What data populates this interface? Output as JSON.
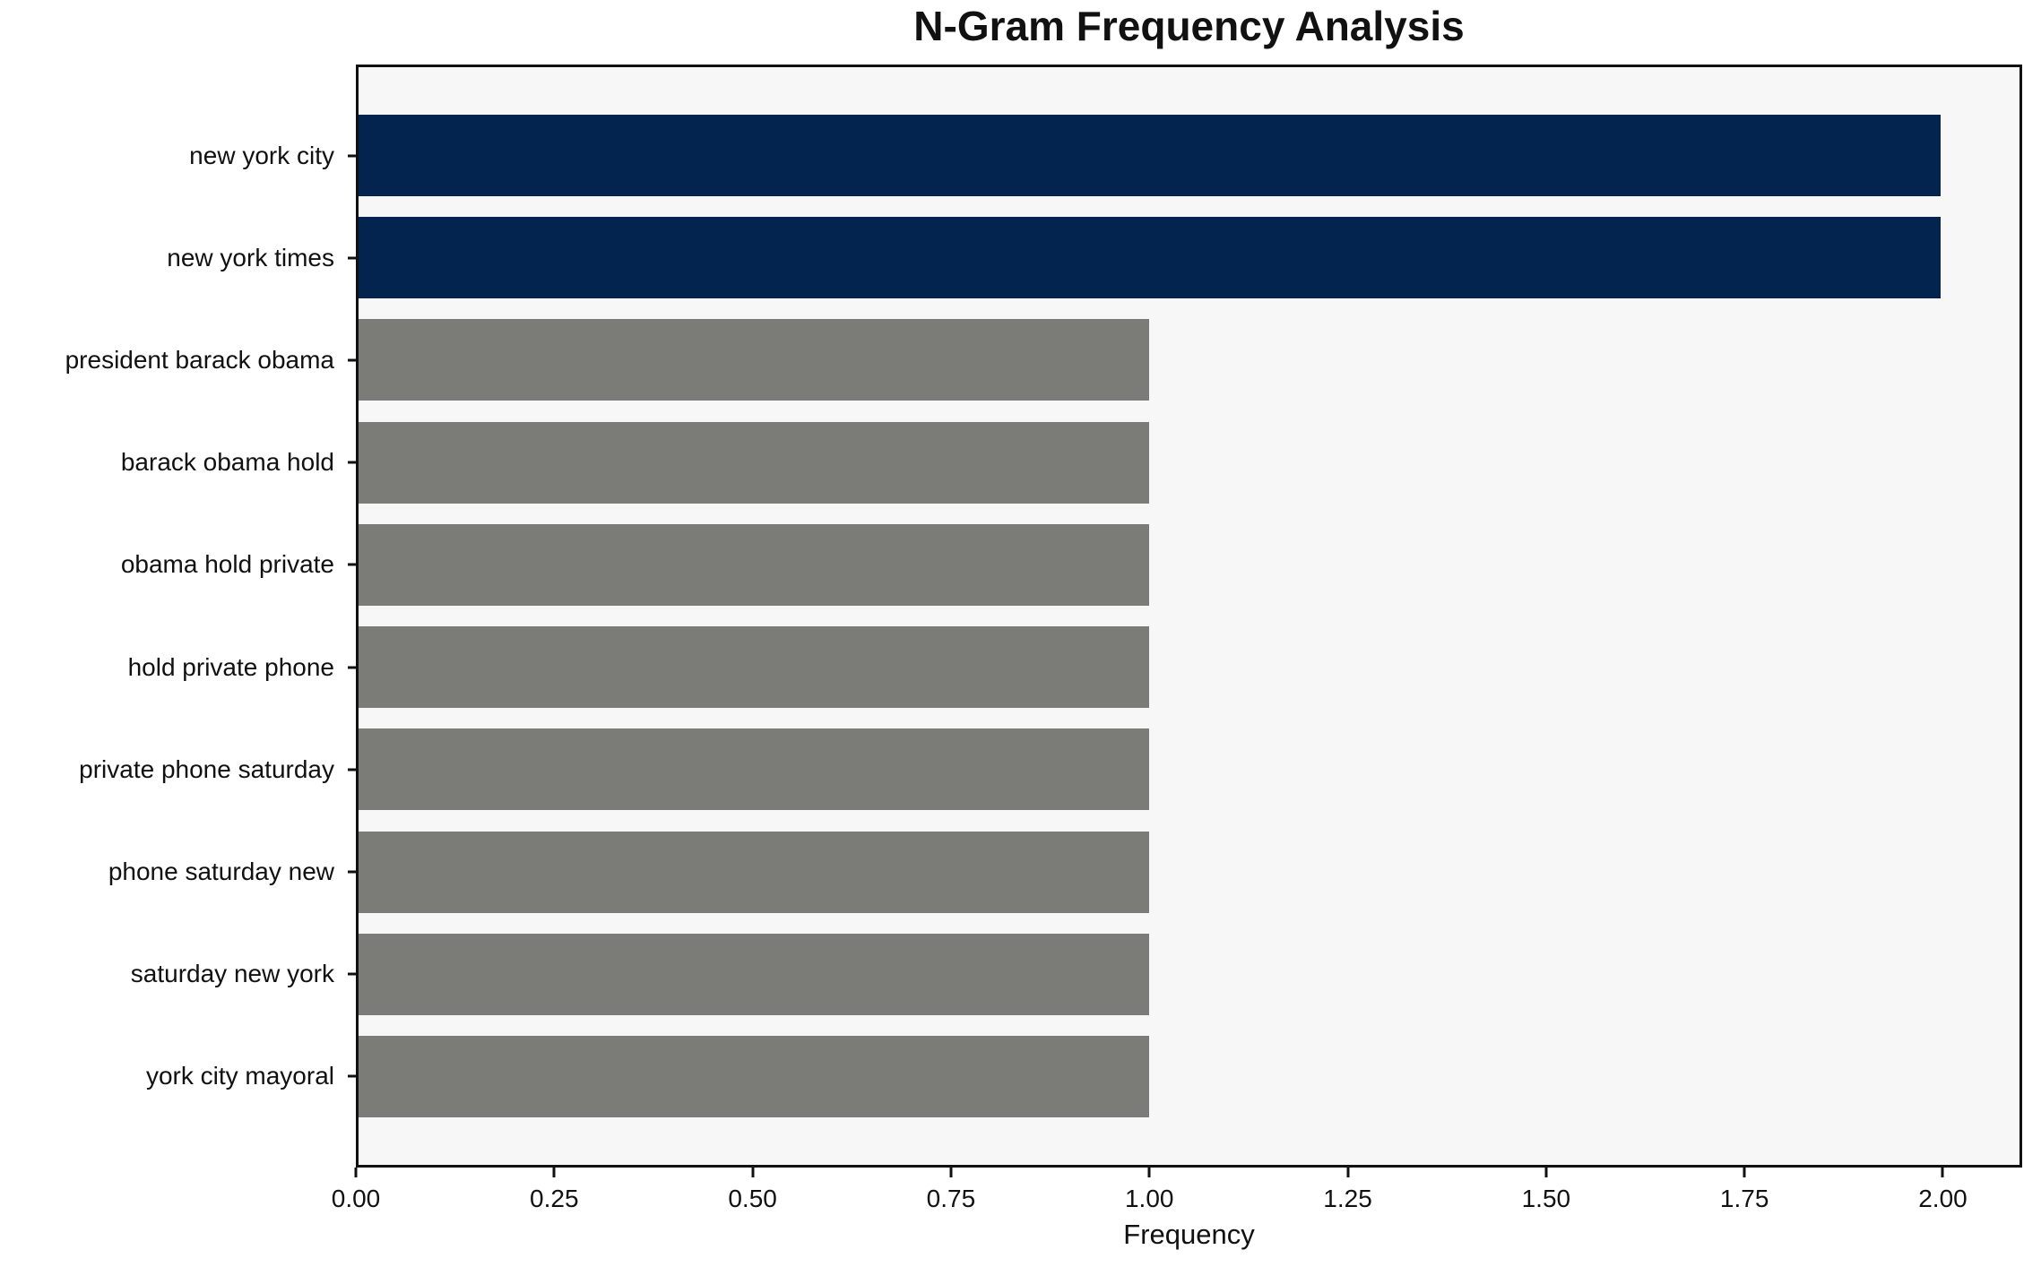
{
  "chart_data": {
    "type": "bar",
    "orientation": "horizontal",
    "title": "N-Gram Frequency Analysis",
    "xlabel": "Frequency",
    "ylabel": "",
    "categories": [
      "new york city",
      "new york times",
      "president barack obama",
      "barack obama hold",
      "obama hold private",
      "hold private phone",
      "private phone saturday",
      "phone saturday new",
      "saturday new york",
      "york city mayoral"
    ],
    "values": [
      2,
      2,
      1,
      1,
      1,
      1,
      1,
      1,
      1,
      1
    ],
    "bar_colors": [
      "#02244e",
      "#02244e",
      "#7b7b78",
      "#7b7b78",
      "#7b7b78",
      "#7b7b78",
      "#7b7b78",
      "#7b7b78",
      "#7b7b78",
      "#7b7b78"
    ],
    "x_ticks": [
      {
        "value": 0.0,
        "label": "0.00"
      },
      {
        "value": 0.25,
        "label": "0.25"
      },
      {
        "value": 0.5,
        "label": "0.50"
      },
      {
        "value": 0.75,
        "label": "0.75"
      },
      {
        "value": 1.0,
        "label": "1.00"
      },
      {
        "value": 1.25,
        "label": "1.25"
      },
      {
        "value": 1.5,
        "label": "1.50"
      },
      {
        "value": 1.75,
        "label": "1.75"
      },
      {
        "value": 2.0,
        "label": "2.00"
      }
    ],
    "xlim": [
      0,
      2.1
    ],
    "legend": null,
    "grid": false,
    "colors": {
      "highlight": "#02244e",
      "default_bar": "#7b7b78",
      "plot_background": "#f7f7f7",
      "figure_background": "#ffffff",
      "spine": "#111111",
      "text": "#111111"
    }
  }
}
